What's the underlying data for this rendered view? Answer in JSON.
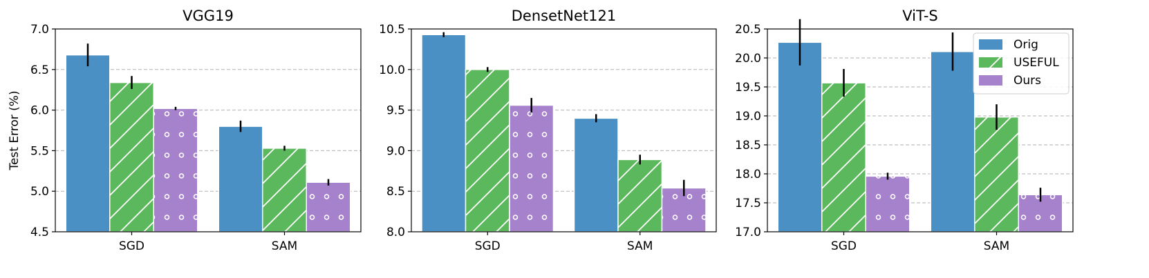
{
  "chart_data": [
    {
      "type": "bar",
      "title": "VGG19",
      "xlabel": "",
      "ylabel": "Test Error (%)",
      "ylim": [
        4.5,
        7.0
      ],
      "yticks": [
        "4.5",
        "5.0",
        "5.5",
        "6.0",
        "6.5",
        "7.0"
      ],
      "yticks_values": [
        4.5,
        5.0,
        5.5,
        6.0,
        6.5,
        7.0
      ],
      "grid": true,
      "categories": [
        "SGD",
        "SAM"
      ],
      "series": [
        {
          "name": "Orig",
          "values": [
            6.68,
            5.8
          ],
          "errors": [
            0.14,
            0.07
          ]
        },
        {
          "name": "USEFUL",
          "values": [
            6.34,
            5.53
          ],
          "errors": [
            0.08,
            0.03
          ]
        },
        {
          "name": "Ours",
          "values": [
            6.02,
            5.11
          ],
          "errors": [
            0.02,
            0.04
          ]
        }
      ]
    },
    {
      "type": "bar",
      "title": "DensetNet121",
      "xlabel": "",
      "ylabel": "",
      "ylim": [
        8.0,
        10.5
      ],
      "yticks": [
        "8.0",
        "8.5",
        "9.0",
        "9.5",
        "10.0",
        "10.5"
      ],
      "yticks_values": [
        8.0,
        8.5,
        9.0,
        9.5,
        10.0,
        10.5
      ],
      "grid": true,
      "categories": [
        "SGD",
        "SAM"
      ],
      "series": [
        {
          "name": "Orig",
          "values": [
            10.43,
            9.4
          ],
          "errors": [
            0.03,
            0.05
          ]
        },
        {
          "name": "USEFUL",
          "values": [
            10.0,
            8.89
          ],
          "errors": [
            0.03,
            0.06
          ]
        },
        {
          "name": "Ours",
          "values": [
            9.56,
            8.54
          ],
          "errors": [
            0.09,
            0.1
          ]
        }
      ]
    },
    {
      "type": "bar",
      "title": "ViT-S",
      "xlabel": "",
      "ylabel": "",
      "ylim": [
        17.0,
        20.5
      ],
      "yticks": [
        "17.0",
        "17.5",
        "18.0",
        "18.5",
        "19.0",
        "19.5",
        "20.0",
        "20.5"
      ],
      "yticks_values": [
        17.0,
        17.5,
        18.0,
        18.5,
        19.0,
        19.5,
        20.0,
        20.5
      ],
      "grid": true,
      "legend": "top-right",
      "categories": [
        "SGD",
        "SAM"
      ],
      "series": [
        {
          "name": "Orig",
          "values": [
            20.27,
            20.11
          ],
          "errors": [
            0.4,
            0.33
          ]
        },
        {
          "name": "USEFUL",
          "values": [
            19.57,
            18.98
          ],
          "errors": [
            0.24,
            0.22
          ]
        },
        {
          "name": "Ours",
          "values": [
            17.96,
            17.64
          ],
          "errors": [
            0.06,
            0.12
          ]
        }
      ]
    }
  ],
  "colors": {
    "Orig": "#4a90c4",
    "USEFUL": "#5cb85c",
    "Ours": "#a681cc"
  }
}
